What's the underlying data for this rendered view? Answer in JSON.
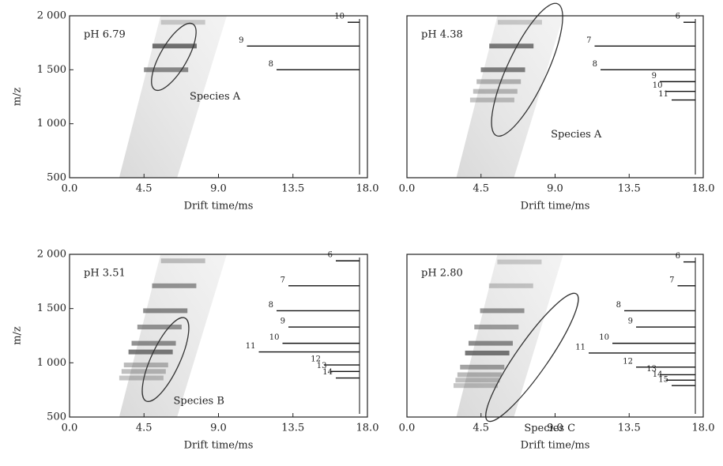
{
  "chart_data": [
    {
      "type": "drift-map",
      "label": "pH 6.79",
      "annotation": "Species A",
      "xlabel": "Drift time/ms",
      "ylabel": "m/z",
      "xlim": [
        0,
        18
      ],
      "xticks": [
        {
          "value": 0,
          "label": "0.0"
        },
        4.5,
        {
          "value": 9,
          "label": "9.0"
        },
        13.5,
        {
          "value": 18,
          "label": "18.0"
        }
      ],
      "ylim": [
        500,
        2000
      ],
      "yticks": [
        {
          "value": 2000,
          "label": "2 000"
        },
        {
          "value": 1500,
          "label": "1 500"
        },
        {
          "value": 1000,
          "label": "1 000"
        },
        500
      ],
      "peaks": {
        "mz": [
          1940,
          1720,
          1500
        ],
        "intensity": [
          10,
          95,
          70
        ],
        "labels": [
          "10",
          "9",
          "8"
        ]
      }
    },
    {
      "type": "drift-map",
      "label": "pH 4.38",
      "annotation": "Species A",
      "xlabel": "Drift time/ms",
      "xlim": [
        0,
        18
      ],
      "xticks": [
        {
          "value": 0,
          "label": "0.0"
        },
        4.5,
        {
          "value": 9,
          "label": "9.0"
        },
        13.5,
        {
          "value": 18,
          "label": "18.0"
        }
      ],
      "ylim": [
        500,
        2000
      ],
      "peaks": {
        "mz": [
          1940,
          1720,
          1500,
          1390,
          1300,
          1220
        ],
        "intensity": [
          10,
          85,
          80,
          30,
          25,
          20
        ],
        "labels": [
          "6",
          "7",
          "8",
          "9",
          "10",
          "11"
        ]
      }
    },
    {
      "type": "drift-map",
      "label": "pH 3.51",
      "annotation": "Species B",
      "xlabel": "Drift time/ms",
      "ylabel": "m/z",
      "xlim": [
        0,
        18
      ],
      "xticks": [
        {
          "value": 0,
          "label": "0.0"
        },
        4.5,
        {
          "value": 9,
          "label": "9.0"
        },
        13.5,
        {
          "value": 18,
          "label": "18.0"
        }
      ],
      "ylim": [
        500,
        2000
      ],
      "yticks": [
        {
          "value": 2000,
          "label": "2 000"
        },
        {
          "value": 1500,
          "label": "1 500"
        },
        {
          "value": 1000,
          "label": "1 000"
        },
        500
      ],
      "peaks": {
        "mz": [
          1940,
          1710,
          1480,
          1330,
          1180,
          1100,
          980,
          920,
          860
        ],
        "intensity": [
          20,
          60,
          70,
          60,
          65,
          85,
          30,
          25,
          20
        ],
        "labels": [
          "6",
          "7",
          "8",
          "9",
          "10",
          "11",
          "12",
          "13",
          "14"
        ]
      }
    },
    {
      "type": "drift-map",
      "label": "pH 2.80",
      "annotation": "Species C",
      "xlabel": "Drift time/ms",
      "xlim": [
        0,
        18
      ],
      "xticks": [
        {
          "value": 0,
          "label": "0.0"
        },
        4.5,
        {
          "value": 9,
          "label": "9.0"
        },
        13.5,
        {
          "value": 18,
          "label": "18.0"
        }
      ],
      "ylim": [
        500,
        2000
      ],
      "peaks": {
        "mz": [
          1930,
          1710,
          1480,
          1330,
          1180,
          1090,
          960,
          890,
          840,
          790
        ],
        "intensity": [
          10,
          15,
          60,
          50,
          70,
          90,
          50,
          30,
          25,
          20
        ],
        "labels": [
          "6",
          "7",
          "8",
          "9",
          "10",
          "11",
          "12",
          "13",
          "14",
          "15"
        ]
      }
    }
  ]
}
